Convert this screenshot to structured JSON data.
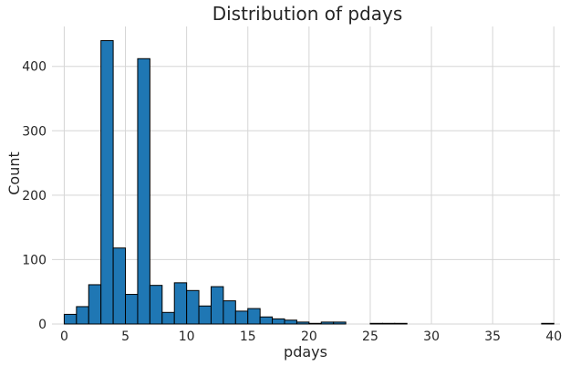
{
  "chart_data": {
    "type": "bar",
    "title": "Distribution of pdays",
    "xlabel": "pdays",
    "ylabel": "Count",
    "xlim": [
      -1,
      40.5
    ],
    "ylim": [
      0,
      462
    ],
    "xticks": [
      0,
      5,
      10,
      15,
      20,
      25,
      30,
      35,
      40
    ],
    "yticks": [
      0,
      100,
      200,
      300,
      400
    ],
    "bin_width": 1,
    "bar_color": "#1f77b4",
    "edge_color": "#000000",
    "grid": true,
    "bins": [
      {
        "x0": 0,
        "value": 15
      },
      {
        "x0": 1,
        "value": 27
      },
      {
        "x0": 2,
        "value": 61
      },
      {
        "x0": 3,
        "value": 440
      },
      {
        "x0": 4,
        "value": 118
      },
      {
        "x0": 5,
        "value": 46
      },
      {
        "x0": 6,
        "value": 412
      },
      {
        "x0": 7,
        "value": 60
      },
      {
        "x0": 8,
        "value": 18
      },
      {
        "x0": 9,
        "value": 64
      },
      {
        "x0": 10,
        "value": 52
      },
      {
        "x0": 11,
        "value": 28
      },
      {
        "x0": 12,
        "value": 58
      },
      {
        "x0": 13,
        "value": 36
      },
      {
        "x0": 14,
        "value": 20
      },
      {
        "x0": 15,
        "value": 24
      },
      {
        "x0": 16,
        "value": 11
      },
      {
        "x0": 17,
        "value": 8
      },
      {
        "x0": 18,
        "value": 6
      },
      {
        "x0": 19,
        "value": 3
      },
      {
        "x0": 20,
        "value": 1
      },
      {
        "x0": 21,
        "value": 3
      },
      {
        "x0": 22,
        "value": 3
      },
      {
        "x0": 23,
        "value": 0
      },
      {
        "x0": 24,
        "value": 0
      },
      {
        "x0": 25,
        "value": 1
      },
      {
        "x0": 26,
        "value": 1
      },
      {
        "x0": 27,
        "value": 1
      },
      {
        "x0": 28,
        "value": 0
      },
      {
        "x0": 29,
        "value": 0
      },
      {
        "x0": 30,
        "value": 0
      },
      {
        "x0": 31,
        "value": 0
      },
      {
        "x0": 32,
        "value": 0
      },
      {
        "x0": 33,
        "value": 0
      },
      {
        "x0": 34,
        "value": 0
      },
      {
        "x0": 35,
        "value": 0
      },
      {
        "x0": 36,
        "value": 0
      },
      {
        "x0": 37,
        "value": 0
      },
      {
        "x0": 38,
        "value": 0
      },
      {
        "x0": 39,
        "value": 1
      }
    ]
  }
}
